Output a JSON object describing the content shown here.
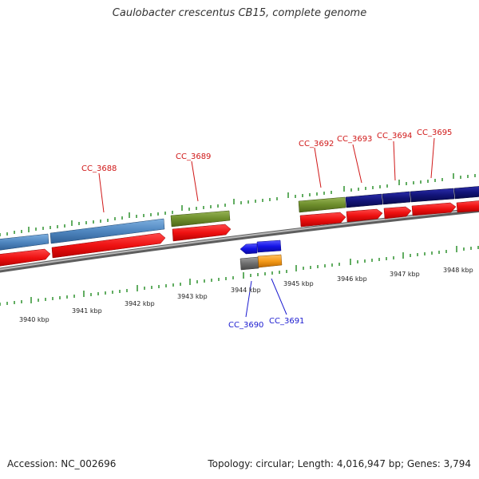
{
  "title": "Caulobacter crescentus CB15, complete genome",
  "accession": "Accession: NC_002696",
  "summary": "Topology: circular; Length: 4,016,947 bp; Genes: 3,794",
  "colors": {
    "backbone": "#8a8a8a",
    "cds": "#ee1111",
    "gene_label_forward": "#d01818",
    "gene_label_reverse": "#1a1ad0",
    "tick": "#1e8a1e",
    "steelblue": "#4f86bf",
    "olive": "#6e8e2c",
    "navy": "#121478",
    "blue": "#1414e6",
    "orange": "#f59b1a",
    "gray": "#6e6e6e"
  },
  "scale_labels": [
    "3940 kbp",
    "3941 kbp",
    "3942 kbp",
    "3943 kbp",
    "3944 kbp",
    "3945 kbp",
    "3946 kbp",
    "3947 kbp",
    "3948 kbp"
  ],
  "genes_forward": [
    "CC_3688",
    "CC_3689",
    "CC_3692",
    "CC_3693",
    "CC_3694",
    "CC_3695"
  ],
  "genes_reverse": [
    "CC_3690",
    "CC_3691"
  ]
}
